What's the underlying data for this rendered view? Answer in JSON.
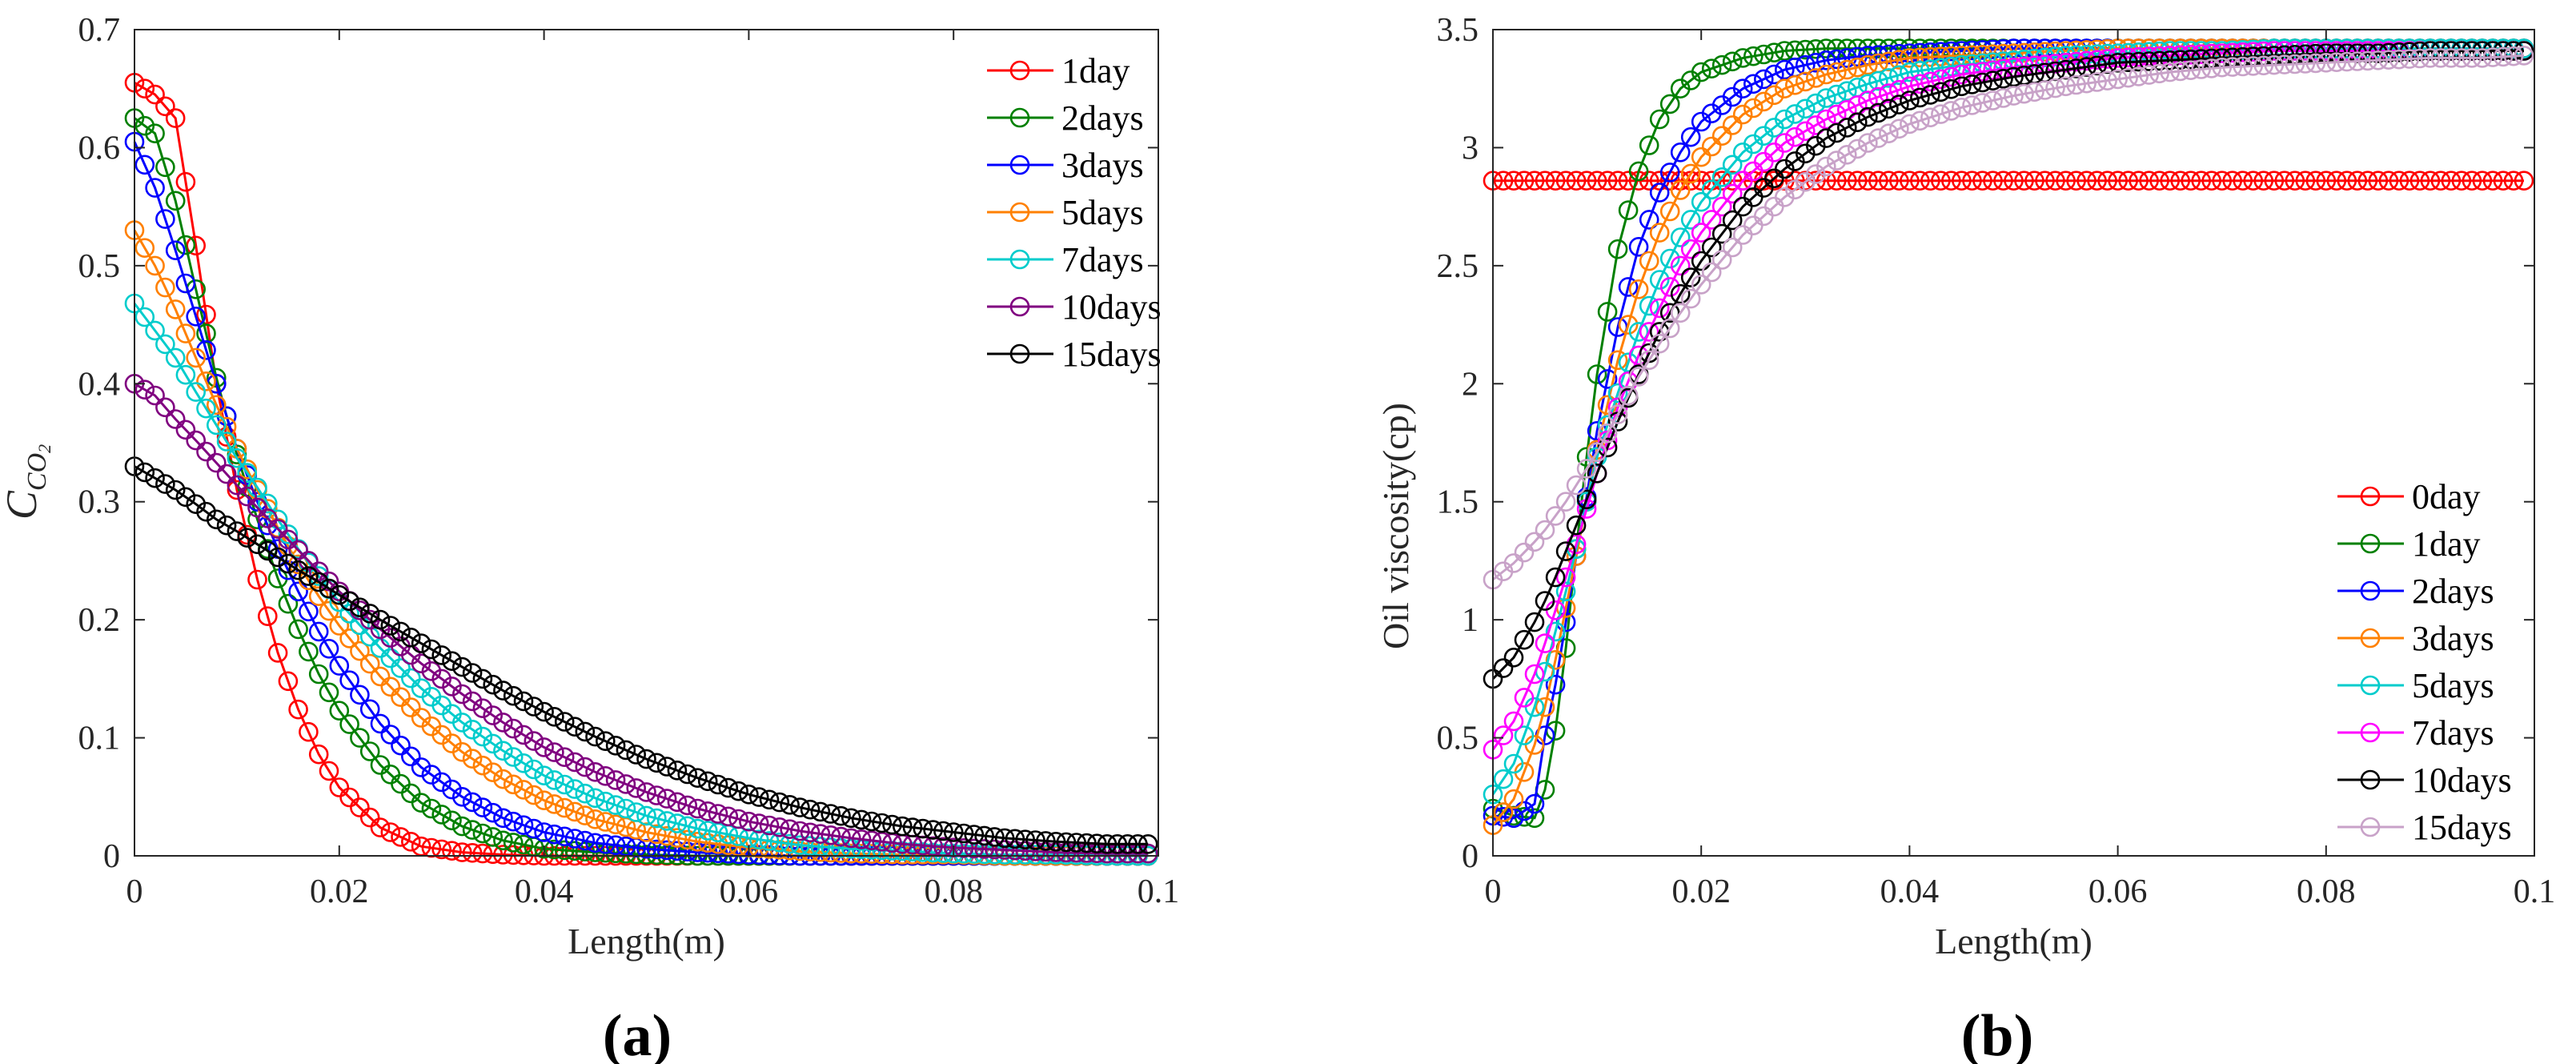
{
  "panels": [
    "(a)",
    "(b)"
  ],
  "chart_data": [
    {
      "type": "line",
      "panel_label": "(a)",
      "xlabel": "Length(m)",
      "ylabel": "C",
      "ylabel_sub": "CO",
      "ylabel_subsub": "2",
      "xlim": [
        0,
        0.1
      ],
      "ylim": [
        0,
        0.7
      ],
      "xticks": [
        "0",
        "0.02",
        "0.04",
        "0.06",
        "0.08",
        "0.1"
      ],
      "yticks": [
        "0",
        "0.1",
        "0.2",
        "0.3",
        "0.4",
        "0.5",
        "0.6",
        "0.7"
      ],
      "legend_position": "top-right",
      "marker": "circle",
      "x": [
        0,
        0.002,
        0.004,
        0.006,
        0.008,
        0.01,
        0.012,
        0.014,
        0.016,
        0.018,
        0.02,
        0.024,
        0.028,
        0.032,
        0.036,
        0.04,
        0.045,
        0.05,
        0.055,
        0.06,
        0.065,
        0.07,
        0.075,
        0.08,
        0.085,
        0.09,
        0.095,
        0.099
      ],
      "series": [
        {
          "name": "1day",
          "color": "#ff0000",
          "values": [
            0.655,
            0.645,
            0.625,
            0.517,
            0.4,
            0.31,
            0.234,
            0.172,
            0.124,
            0.086,
            0.058,
            0.024,
            0.008,
            0.003,
            0.001,
            0,
            0,
            0,
            0,
            0,
            0,
            0,
            0,
            0,
            0,
            0,
            0,
            0
          ]
        },
        {
          "name": "2days",
          "color": "#008000",
          "values": [
            0.625,
            0.612,
            0.555,
            0.48,
            0.405,
            0.34,
            0.285,
            0.235,
            0.192,
            0.154,
            0.123,
            0.077,
            0.045,
            0.025,
            0.013,
            0.006,
            0.003,
            0.001,
            0,
            0,
            0,
            0,
            0,
            0,
            0,
            0,
            0,
            0
          ]
        },
        {
          "name": "3days",
          "color": "#0000ff",
          "values": [
            0.605,
            0.566,
            0.513,
            0.457,
            0.4,
            0.345,
            0.3,
            0.26,
            0.224,
            0.19,
            0.161,
            0.112,
            0.075,
            0.05,
            0.032,
            0.02,
            0.011,
            0.006,
            0.003,
            0.001,
            0,
            0,
            0,
            0,
            0,
            0,
            0,
            0
          ]
        },
        {
          "name": "5days",
          "color": "#ff8000",
          "values": [
            0.53,
            0.5,
            0.463,
            0.422,
            0.382,
            0.345,
            0.31,
            0.278,
            0.247,
            0.22,
            0.195,
            0.152,
            0.117,
            0.088,
            0.065,
            0.047,
            0.031,
            0.02,
            0.012,
            0.007,
            0.004,
            0.002,
            0.001,
            0.001,
            0,
            0,
            0,
            0
          ]
        },
        {
          "name": "7days",
          "color": "#00cccc",
          "values": [
            0.468,
            0.445,
            0.422,
            0.393,
            0.365,
            0.337,
            0.312,
            0.285,
            0.26,
            0.237,
            0.215,
            0.176,
            0.142,
            0.113,
            0.089,
            0.068,
            0.049,
            0.034,
            0.023,
            0.015,
            0.009,
            0.006,
            0.004,
            0.002,
            0.001,
            0.001,
            0,
            0
          ]
        },
        {
          "name": "10days",
          "color": "#800080",
          "values": [
            0.4,
            0.39,
            0.37,
            0.352,
            0.333,
            0.314,
            0.295,
            0.277,
            0.259,
            0.241,
            0.224,
            0.192,
            0.163,
            0.137,
            0.113,
            0.092,
            0.071,
            0.054,
            0.04,
            0.029,
            0.021,
            0.015,
            0.01,
            0.007,
            0.005,
            0.003,
            0.002,
            0.002
          ]
        },
        {
          "name": "15days",
          "color": "#000000",
          "values": [
            0.33,
            0.32,
            0.31,
            0.298,
            0.285,
            0.275,
            0.264,
            0.253,
            0.242,
            0.232,
            0.221,
            0.2,
            0.18,
            0.16,
            0.14,
            0.122,
            0.101,
            0.082,
            0.066,
            0.052,
            0.041,
            0.032,
            0.025,
            0.02,
            0.015,
            0.012,
            0.01,
            0.01
          ]
        }
      ]
    },
    {
      "type": "line",
      "panel_label": "(b)",
      "xlabel": "Length(m)",
      "ylabel": "Oil viscosity(cp)",
      "xlim": [
        0,
        0.1
      ],
      "ylim": [
        0,
        3.5
      ],
      "xticks": [
        "0",
        "0.02",
        "0.04",
        "0.06",
        "0.08",
        "0.1"
      ],
      "yticks": [
        "0",
        "0.5",
        "1",
        "1.5",
        "2",
        "2.5",
        "3",
        "3.5"
      ],
      "legend_position": "bottom-right",
      "marker": "circle",
      "x": [
        0,
        0.002,
        0.004,
        0.005,
        0.006,
        0.007,
        0.008,
        0.009,
        0.01,
        0.012,
        0.014,
        0.016,
        0.018,
        0.02,
        0.024,
        0.028,
        0.032,
        0.036,
        0.04,
        0.045,
        0.05,
        0.055,
        0.06,
        0.065,
        0.07,
        0.075,
        0.08,
        0.085,
        0.09,
        0.095,
        0.099
      ],
      "series": [
        {
          "name": "0day",
          "color": "#ff0000",
          "values": [
            2.86,
            2.86,
            2.86,
            2.86,
            2.86,
            2.86,
            2.86,
            2.86,
            2.86,
            2.86,
            2.86,
            2.86,
            2.86,
            2.86,
            2.86,
            2.86,
            2.86,
            2.86,
            2.86,
            2.86,
            2.86,
            2.86,
            2.86,
            2.86,
            2.86,
            2.86,
            2.86,
            2.86,
            2.86,
            2.86,
            2.86
          ]
        },
        {
          "name": "1day",
          "color": "#008000",
          "values": [
            0.2,
            0.17,
            0.16,
            0.28,
            0.53,
            0.88,
            1.3,
            1.69,
            2.04,
            2.57,
            2.9,
            3.12,
            3.25,
            3.32,
            3.38,
            3.41,
            3.42,
            3.42,
            3.42,
            3.42,
            3.42,
            3.42,
            3.42,
            3.42,
            3.42,
            3.42,
            3.42,
            3.42,
            3.42,
            3.42,
            3.42
          ]
        },
        {
          "name": "2days",
          "color": "#0000ff",
          "values": [
            0.17,
            0.16,
            0.22,
            0.51,
            0.725,
            0.99,
            1.27,
            1.52,
            1.8,
            2.24,
            2.58,
            2.81,
            2.98,
            3.11,
            3.25,
            3.33,
            3.37,
            3.39,
            3.4,
            3.41,
            3.42,
            3.42,
            3.42,
            3.42,
            3.42,
            3.42,
            3.42,
            3.42,
            3.42,
            3.42,
            3.42
          ]
        },
        {
          "name": "3days",
          "color": "#ff8000",
          "values": [
            0.13,
            0.24,
            0.47,
            0.63,
            0.83,
            1.05,
            1.27,
            1.5,
            1.72,
            2.1,
            2.4,
            2.64,
            2.82,
            2.96,
            3.14,
            3.25,
            3.31,
            3.35,
            3.38,
            3.39,
            3.4,
            3.41,
            3.42,
            3.42,
            3.42,
            3.42,
            3.42,
            3.42,
            3.42,
            3.42,
            3.42
          ]
        },
        {
          "name": "5days",
          "color": "#00cccc",
          "values": [
            0.26,
            0.39,
            0.63,
            0.78,
            0.95,
            1.12,
            1.3,
            1.5,
            1.69,
            1.96,
            2.22,
            2.44,
            2.62,
            2.77,
            2.98,
            3.12,
            3.21,
            3.27,
            3.32,
            3.35,
            3.37,
            3.39,
            3.4,
            3.41,
            3.41,
            3.42,
            3.42,
            3.42,
            3.42,
            3.42,
            3.42
          ]
        },
        {
          "name": "7days",
          "color": "#ff00ff",
          "values": [
            0.45,
            0.57,
            0.77,
            0.9,
            1.04,
            1.18,
            1.32,
            1.47,
            1.62,
            1.9,
            2.12,
            2.32,
            2.5,
            2.64,
            2.86,
            3.02,
            3.12,
            3.2,
            3.26,
            3.31,
            3.34,
            3.36,
            3.38,
            3.39,
            3.4,
            3.41,
            3.41,
            3.41,
            3.41,
            3.41,
            3.41
          ]
        },
        {
          "name": "10days",
          "color": "#000000",
          "values": [
            0.75,
            0.84,
            0.99,
            1.08,
            1.18,
            1.29,
            1.4,
            1.51,
            1.62,
            1.84,
            2.04,
            2.22,
            2.38,
            2.52,
            2.75,
            2.91,
            3.04,
            3.13,
            3.2,
            3.26,
            3.3,
            3.33,
            3.36,
            3.37,
            3.38,
            3.39,
            3.4,
            3.4,
            3.41,
            3.41,
            3.41
          ]
        },
        {
          "name": "15days",
          "color": "#c8a2c8",
          "values": [
            1.17,
            1.24,
            1.33,
            1.38,
            1.44,
            1.5,
            1.57,
            1.64,
            1.71,
            1.87,
            2.03,
            2.17,
            2.3,
            2.42,
            2.63,
            2.79,
            2.92,
            3.02,
            3.1,
            3.17,
            3.22,
            3.26,
            3.29,
            3.32,
            3.34,
            3.35,
            3.36,
            3.37,
            3.38,
            3.38,
            3.39
          ]
        }
      ]
    }
  ]
}
